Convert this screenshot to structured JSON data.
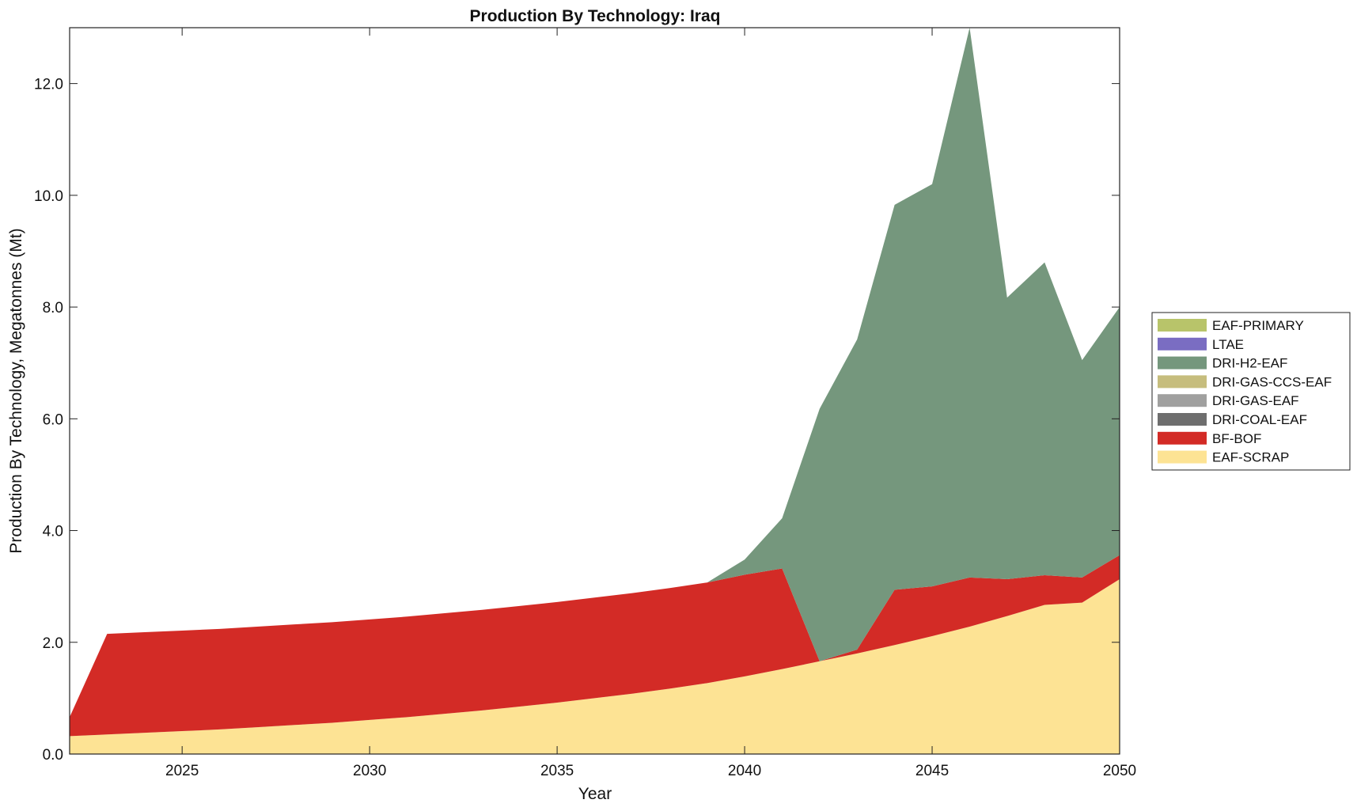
{
  "chart_data": {
    "type": "area",
    "stacked": true,
    "title": "Production By Technology: Iraq",
    "xlabel": "Year",
    "ylabel": "Production By Technology, Megatonnes (Mt)",
    "xlim": [
      2022,
      2050
    ],
    "ylim": [
      0,
      13
    ],
    "xticks": [
      2025,
      2030,
      2035,
      2040,
      2045,
      2050
    ],
    "yticks": [
      0,
      2,
      4,
      6,
      8,
      10,
      12
    ],
    "ytick_labels": [
      "0.0",
      "2.0",
      "4.0",
      "6.0",
      "8.0",
      "10.0",
      "12.0"
    ],
    "legend_position": "right",
    "x": [
      2022,
      2023,
      2024,
      2025,
      2026,
      2027,
      2028,
      2029,
      2030,
      2031,
      2032,
      2033,
      2034,
      2035,
      2036,
      2037,
      2038,
      2039,
      2040,
      2041,
      2042,
      2043,
      2044,
      2045,
      2046,
      2047,
      2048,
      2049,
      2050
    ],
    "series": [
      {
        "name": "EAF-SCRAP",
        "color": "#fde394",
        "values": [
          0.32,
          0.35,
          0.38,
          0.41,
          0.44,
          0.48,
          0.52,
          0.56,
          0.61,
          0.66,
          0.72,
          0.78,
          0.85,
          0.92,
          1.0,
          1.08,
          1.17,
          1.27,
          1.39,
          1.52,
          1.66,
          1.8,
          1.95,
          2.11,
          2.28,
          2.47,
          2.67,
          2.71,
          3.13
        ]
      },
      {
        "name": "BF-BOF",
        "color": "#d32b26",
        "values": [
          0.34,
          1.8,
          1.8,
          1.8,
          1.8,
          1.8,
          1.8,
          1.8,
          1.8,
          1.8,
          1.8,
          1.8,
          1.8,
          1.8,
          1.8,
          1.8,
          1.8,
          1.8,
          1.82,
          1.8,
          0.0,
          0.07,
          0.99,
          0.89,
          0.88,
          0.66,
          0.53,
          0.45,
          0.43
        ]
      },
      {
        "name": "DRI-COAL-EAF",
        "color": "#6e6e6e",
        "values": [
          0,
          0,
          0,
          0,
          0,
          0,
          0,
          0,
          0,
          0,
          0,
          0,
          0,
          0,
          0,
          0,
          0,
          0,
          0,
          0,
          0,
          0,
          0,
          0,
          0,
          0,
          0,
          0,
          0
        ]
      },
      {
        "name": "DRI-GAS-EAF",
        "color": "#a0a09f",
        "values": [
          0,
          0,
          0,
          0,
          0,
          0,
          0,
          0,
          0,
          0,
          0,
          0,
          0,
          0,
          0,
          0,
          0,
          0,
          0,
          0,
          0,
          0,
          0,
          0,
          0,
          0,
          0,
          0,
          0
        ]
      },
      {
        "name": "DRI-GAS-CCS-EAF",
        "color": "#c6bd7d",
        "values": [
          0,
          0,
          0,
          0,
          0,
          0,
          0,
          0,
          0,
          0,
          0,
          0,
          0,
          0,
          0,
          0,
          0,
          0,
          0,
          0,
          0,
          0,
          0,
          0,
          0,
          0,
          0,
          0,
          0
        ]
      },
      {
        "name": "DRI-H2-EAF",
        "color": "#75977d",
        "values": [
          0,
          0,
          0,
          0,
          0,
          0,
          0,
          0,
          0,
          0,
          0,
          0,
          0,
          0,
          0,
          0,
          0,
          0,
          0.27,
          0.9,
          4.52,
          5.55,
          6.89,
          7.2,
          9.84,
          5.04,
          5.6,
          3.89,
          4.44
        ]
      },
      {
        "name": "LTAE",
        "color": "#7a6dc2",
        "values": [
          0,
          0,
          0,
          0,
          0,
          0,
          0,
          0,
          0,
          0,
          0,
          0,
          0,
          0,
          0,
          0,
          0,
          0,
          0,
          0,
          0,
          0,
          0,
          0,
          0,
          0,
          0,
          0,
          0
        ]
      },
      {
        "name": "EAF-PRIMARY",
        "color": "#b8c46a",
        "values": [
          0,
          0,
          0,
          0,
          0,
          0,
          0,
          0,
          0,
          0,
          0,
          0,
          0,
          0,
          0,
          0,
          0,
          0,
          0,
          0,
          0,
          0,
          0,
          0,
          0,
          0,
          0,
          0,
          0
        ]
      }
    ]
  }
}
